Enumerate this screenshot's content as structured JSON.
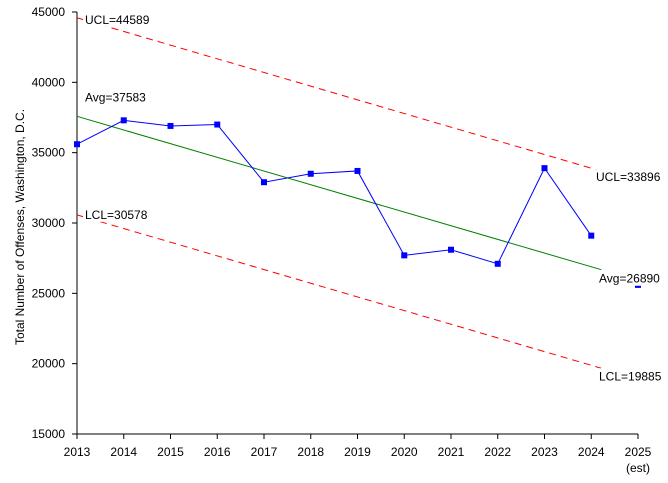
{
  "chart_data": {
    "type": "line",
    "title": "",
    "xlabel": "",
    "ylabel": "Total Number of Offenses, Washington, D.C.",
    "categories": [
      "2013",
      "2014",
      "2015",
      "2016",
      "2017",
      "2018",
      "2019",
      "2020",
      "2021",
      "2022",
      "2023",
      "2024",
      "2025"
    ],
    "category_sublabels": {
      "2025": "(est)"
    },
    "ylim": [
      15000,
      45000
    ],
    "yticks": [
      "15000",
      "20000",
      "25000",
      "30000",
      "35000",
      "40000",
      "45000"
    ],
    "grid": false,
    "legend": "none",
    "series": [
      {
        "name": "",
        "values": [
          35600,
          37300,
          36900,
          37000,
          32900,
          33500,
          33700,
          27700,
          28100,
          27100,
          33900,
          29100,
          25600
        ],
        "color": "#0000ff",
        "marker": "square"
      }
    ],
    "control_limits": {
      "avg": {
        "start": 37583,
        "end": 26890,
        "color": "#008000",
        "style": "solid"
      },
      "ucl": {
        "start": 44589,
        "end": 33896,
        "color": "#ff0000",
        "style": "dashed"
      },
      "lcl": {
        "start": 30578,
        "end": 19885,
        "color": "#ff0000",
        "style": "dashed"
      },
      "span": [
        "2013",
        "2024"
      ]
    },
    "annotations": {
      "ucl_start": "UCL=44589",
      "avg_start": "Avg=37583",
      "lcl_start": "LCL=30578",
      "ucl_end": "UCL=33896",
      "avg_end": "Avg=26890",
      "lcl_end": "LCL=19885"
    }
  }
}
